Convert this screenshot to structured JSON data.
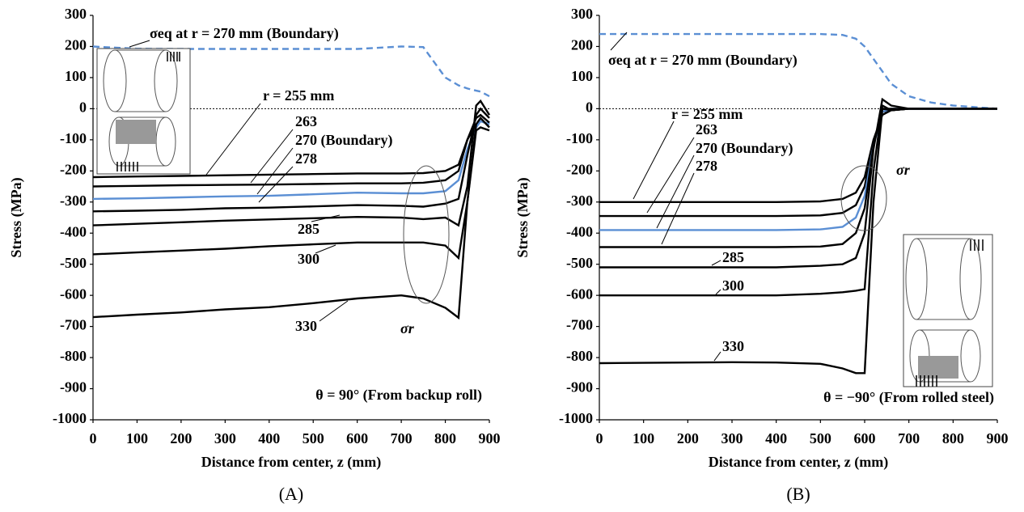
{
  "chart_data": [
    {
      "type": "line",
      "panel_label": "(A)",
      "xlabel": "Distance from center, z (mm)",
      "ylabel": "Stress (MPa)",
      "annotation": "θ = 90° (From backup roll)",
      "marker_label": "σr",
      "x": [
        0,
        100,
        200,
        300,
        400,
        500,
        600,
        700,
        750,
        800,
        830,
        850,
        870,
        880,
        900
      ],
      "xlim": [
        0,
        900
      ],
      "xticks": [
        0,
        100,
        200,
        300,
        400,
        500,
        600,
        700,
        800,
        900
      ],
      "ylim": [
        -1000,
        300
      ],
      "yticks": [
        -1000,
        -900,
        -800,
        -700,
        -600,
        -500,
        -400,
        -300,
        -200,
        -100,
        0,
        100,
        200,
        300
      ],
      "series": [
        {
          "name": "σeq at r = 270 mm (Boundary)",
          "color": "#5b8fd4",
          "style": "dashed",
          "values": [
            200,
            193,
            192,
            192,
            192,
            192,
            192,
            200,
            198,
            100,
            75,
            65,
            58,
            55,
            40
          ]
        },
        {
          "name": "r = 255 mm",
          "color": "#000000",
          "style": "solid",
          "values": [
            -220,
            -218,
            -216,
            -214,
            -212,
            -210,
            -208,
            -208,
            -207,
            -200,
            -180,
            -100,
            -50,
            -40,
            -50
          ]
        },
        {
          "name": "263",
          "color": "#000000",
          "style": "solid",
          "values": [
            -250,
            -248,
            -246,
            -245,
            -244,
            -242,
            -240,
            -240,
            -238,
            -230,
            -200,
            -100,
            -30,
            -20,
            -45
          ]
        },
        {
          "name": "270 (Boundary)",
          "color": "#5b8fd4",
          "style": "solid",
          "values": [
            -290,
            -288,
            -285,
            -282,
            -280,
            -275,
            -270,
            -272,
            -272,
            -265,
            -230,
            -130,
            -60,
            -40,
            -50
          ]
        },
        {
          "name": "278",
          "color": "#000000",
          "style": "solid",
          "values": [
            -330,
            -328,
            -325,
            -320,
            -318,
            -314,
            -310,
            -312,
            -315,
            -305,
            -290,
            -150,
            -20,
            0,
            -30
          ]
        },
        {
          "name": "285",
          "color": "#000000",
          "style": "solid",
          "values": [
            -375,
            -370,
            -365,
            -360,
            -356,
            -352,
            -348,
            -350,
            -355,
            -350,
            -375,
            -250,
            10,
            25,
            -20
          ]
        },
        {
          "name": "300",
          "color": "#000000",
          "style": "solid",
          "values": [
            -468,
            -462,
            -456,
            -450,
            -442,
            -436,
            -430,
            -430,
            -430,
            -440,
            -480,
            -300,
            -50,
            -30,
            -60
          ]
        },
        {
          "name": "330",
          "color": "#000000",
          "style": "solid",
          "values": [
            -670,
            -662,
            -655,
            -645,
            -638,
            -625,
            -610,
            -600,
            -610,
            -640,
            -672,
            -300,
            -70,
            -60,
            -70
          ]
        }
      ]
    },
    {
      "type": "line",
      "panel_label": "(B)",
      "xlabel": "Distance from center, z (mm)",
      "ylabel": "Stress (MPa)",
      "annotation": "θ = −90° (From rolled steel)",
      "marker_label": "σr",
      "x": [
        0,
        100,
        200,
        300,
        400,
        500,
        550,
        580,
        600,
        620,
        640,
        660,
        700,
        750,
        800,
        900
      ],
      "xlim": [
        0,
        900
      ],
      "xticks": [
        0,
        100,
        200,
        300,
        400,
        500,
        600,
        700,
        800,
        900
      ],
      "ylim": [
        -1000,
        300
      ],
      "yticks": [
        -1000,
        -900,
        -800,
        -700,
        -600,
        -500,
        -400,
        -300,
        -200,
        -100,
        0,
        100,
        200,
        300
      ],
      "series": [
        {
          "name": "σeq at r = 270 mm (Boundary)",
          "color": "#5b8fd4",
          "style": "dashed",
          "values": [
            240,
            240,
            240,
            240,
            240,
            240,
            237,
            225,
            200,
            160,
            120,
            80,
            40,
            20,
            10,
            0
          ]
        },
        {
          "name": "r = 255 mm",
          "color": "#000000",
          "style": "solid",
          "values": [
            -300,
            -300,
            -300,
            -300,
            -300,
            -298,
            -290,
            -270,
            -220,
            -100,
            -20,
            -5,
            0,
            0,
            0,
            0
          ]
        },
        {
          "name": "263",
          "color": "#000000",
          "style": "solid",
          "values": [
            -345,
            -345,
            -345,
            -345,
            -345,
            -343,
            -335,
            -310,
            -250,
            -110,
            -10,
            -5,
            0,
            0,
            0,
            0
          ]
        },
        {
          "name": "270 (Boundary)",
          "color": "#5b8fd4",
          "style": "solid",
          "values": [
            -390,
            -390,
            -390,
            -390,
            -390,
            -388,
            -380,
            -350,
            -280,
            -120,
            -10,
            0,
            0,
            0,
            0,
            0
          ]
        },
        {
          "name": "278",
          "color": "#000000",
          "style": "solid",
          "values": [
            -445,
            -445,
            -445,
            -445,
            -445,
            -443,
            -435,
            -400,
            -320,
            -120,
            0,
            -5,
            0,
            0,
            0,
            0
          ]
        },
        {
          "name": "285",
          "color": "#000000",
          "style": "solid",
          "values": [
            -510,
            -510,
            -510,
            -510,
            -510,
            -505,
            -500,
            -480,
            -400,
            -130,
            30,
            10,
            0,
            0,
            0,
            0
          ]
        },
        {
          "name": "300",
          "color": "#000000",
          "style": "solid",
          "values": [
            -600,
            -600,
            -600,
            -600,
            -600,
            -595,
            -590,
            -585,
            -580,
            -200,
            10,
            -5,
            0,
            0,
            0,
            0
          ]
        },
        {
          "name": "330",
          "color": "#000000",
          "style": "solid",
          "values": [
            -818,
            -817,
            -816,
            -815,
            -816,
            -820,
            -835,
            -850,
            -850,
            -300,
            0,
            0,
            0,
            0,
            0,
            0
          ]
        }
      ]
    }
  ]
}
